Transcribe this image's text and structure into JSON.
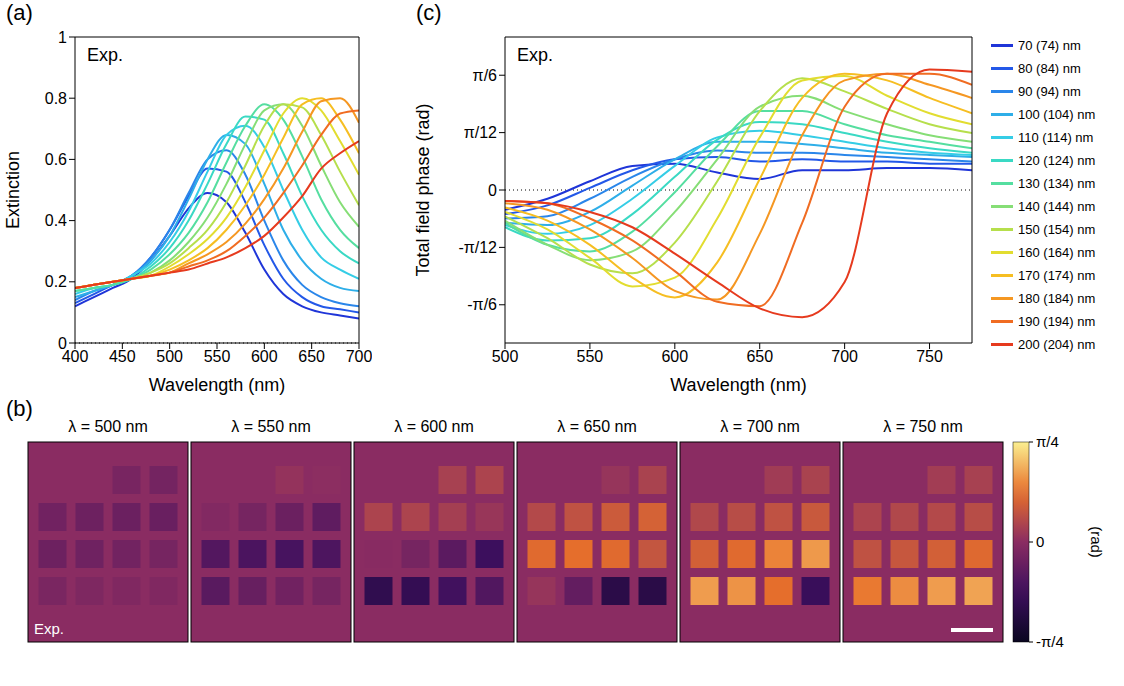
{
  "chart_data": [
    {
      "type": "line",
      "panel_label": "(a)",
      "annotations": [
        "Exp."
      ],
      "x_label": "Wavelength (nm)",
      "y_label": "Extinction",
      "x": [
        400,
        420,
        440,
        460,
        480,
        500,
        520,
        540,
        560,
        580,
        600,
        620,
        640,
        660,
        680,
        700
      ],
      "xlim": [
        400,
        700
      ],
      "xticks": [
        400,
        450,
        500,
        550,
        600,
        650,
        700
      ],
      "ylim": [
        0,
        1
      ],
      "yticks": [
        0,
        0.2,
        0.4,
        0.6,
        0.8,
        1
      ],
      "series": [
        {
          "color": "#1f35d8",
          "values": [
            0.12,
            0.15,
            0.18,
            0.21,
            0.27,
            0.35,
            0.44,
            0.49,
            0.46,
            0.36,
            0.24,
            0.16,
            0.12,
            0.1,
            0.09,
            0.08
          ]
        },
        {
          "color": "#2358e8",
          "values": [
            0.13,
            0.16,
            0.19,
            0.22,
            0.28,
            0.37,
            0.48,
            0.57,
            0.56,
            0.46,
            0.32,
            0.21,
            0.15,
            0.12,
            0.11,
            0.1
          ]
        },
        {
          "color": "#2a86ea",
          "values": [
            0.14,
            0.17,
            0.19,
            0.22,
            0.28,
            0.37,
            0.49,
            0.6,
            0.63,
            0.55,
            0.4,
            0.27,
            0.19,
            0.15,
            0.13,
            0.12
          ]
        },
        {
          "color": "#2eaee8",
          "values": [
            0.15,
            0.17,
            0.19,
            0.22,
            0.27,
            0.35,
            0.47,
            0.6,
            0.68,
            0.65,
            0.52,
            0.37,
            0.27,
            0.21,
            0.18,
            0.17
          ]
        },
        {
          "color": "#35cde6",
          "values": [
            0.16,
            0.18,
            0.19,
            0.22,
            0.26,
            0.33,
            0.43,
            0.56,
            0.68,
            0.71,
            0.64,
            0.5,
            0.37,
            0.28,
            0.24,
            0.21
          ]
        },
        {
          "color": "#3ad9c4",
          "values": [
            0.17,
            0.18,
            0.19,
            0.21,
            0.25,
            0.31,
            0.4,
            0.52,
            0.65,
            0.74,
            0.73,
            0.62,
            0.48,
            0.37,
            0.3,
            0.26
          ]
        },
        {
          "color": "#55dea0",
          "values": [
            0.17,
            0.18,
            0.19,
            0.21,
            0.24,
            0.29,
            0.36,
            0.46,
            0.59,
            0.71,
            0.78,
            0.73,
            0.61,
            0.47,
            0.37,
            0.31
          ]
        },
        {
          "color": "#86de76",
          "values": [
            0.18,
            0.19,
            0.2,
            0.21,
            0.23,
            0.27,
            0.33,
            0.41,
            0.52,
            0.65,
            0.76,
            0.78,
            0.71,
            0.58,
            0.46,
            0.38
          ]
        },
        {
          "color": "#b6df4c",
          "values": [
            0.18,
            0.19,
            0.2,
            0.21,
            0.23,
            0.26,
            0.31,
            0.37,
            0.46,
            0.58,
            0.71,
            0.78,
            0.77,
            0.68,
            0.56,
            0.45
          ]
        },
        {
          "color": "#e2dd30",
          "values": [
            0.18,
            0.19,
            0.2,
            0.21,
            0.22,
            0.25,
            0.29,
            0.34,
            0.41,
            0.51,
            0.63,
            0.75,
            0.8,
            0.76,
            0.66,
            0.55
          ]
        },
        {
          "color": "#f6be22",
          "values": [
            0.18,
            0.19,
            0.2,
            0.21,
            0.22,
            0.24,
            0.27,
            0.31,
            0.37,
            0.45,
            0.55,
            0.67,
            0.78,
            0.8,
            0.73,
            0.62
          ]
        },
        {
          "color": "#f59722",
          "values": [
            0.18,
            0.19,
            0.2,
            0.21,
            0.22,
            0.23,
            0.26,
            0.29,
            0.33,
            0.39,
            0.47,
            0.57,
            0.69,
            0.79,
            0.8,
            0.72
          ]
        },
        {
          "color": "#f06c22",
          "values": [
            0.18,
            0.19,
            0.2,
            0.21,
            0.22,
            0.23,
            0.25,
            0.27,
            0.3,
            0.35,
            0.41,
            0.49,
            0.58,
            0.68,
            0.75,
            0.76
          ]
        },
        {
          "color": "#e63a1e",
          "values": [
            0.18,
            0.19,
            0.2,
            0.21,
            0.22,
            0.23,
            0.24,
            0.26,
            0.28,
            0.31,
            0.35,
            0.41,
            0.48,
            0.57,
            0.62,
            0.66
          ]
        }
      ]
    },
    {
      "type": "heatmap",
      "panel_label": "(b)",
      "annotations": [
        "Exp."
      ],
      "maps": [
        {
          "title": "λ = 500 nm",
          "cells": [
            [
              null,
              null,
              -0.09,
              -0.11
            ],
            [
              -0.13,
              -0.15,
              -0.16,
              -0.17
            ],
            [
              -0.15,
              -0.14,
              -0.12,
              -0.1
            ],
            [
              -0.08,
              -0.06,
              -0.05,
              -0.05
            ]
          ]
        },
        {
          "title": "λ = 550 nm",
          "cells": [
            [
              null,
              null,
              0.04,
              0.01
            ],
            [
              -0.04,
              -0.1,
              -0.16,
              -0.22
            ],
            [
              -0.28,
              -0.32,
              -0.34,
              -0.31
            ],
            [
              -0.25,
              -0.18,
              -0.13,
              -0.1
            ]
          ]
        },
        {
          "title": "λ = 600 nm",
          "cells": [
            [
              null,
              null,
              0.12,
              0.14
            ],
            [
              0.14,
              0.14,
              0.11,
              0.06
            ],
            [
              -0.01,
              -0.1,
              -0.24,
              -0.4
            ],
            [
              -0.49,
              -0.46,
              -0.37,
              -0.29
            ]
          ]
        },
        {
          "title": "λ = 650 nm",
          "cells": [
            [
              null,
              null,
              0.05,
              0.13
            ],
            [
              0.17,
              0.22,
              0.27,
              0.31
            ],
            [
              0.36,
              0.38,
              0.36,
              0.24
            ],
            [
              0.05,
              -0.2,
              -0.53,
              -0.54
            ]
          ]
        },
        {
          "title": "λ = 700 nm",
          "cells": [
            [
              null,
              null,
              0.09,
              0.13
            ],
            [
              0.16,
              0.19,
              0.22,
              0.26
            ],
            [
              0.3,
              0.36,
              0.45,
              0.52
            ],
            [
              0.53,
              0.5,
              0.38,
              -0.42
            ]
          ]
        },
        {
          "title": "λ = 750 nm",
          "cells": [
            [
              null,
              null,
              0.1,
              0.12
            ],
            [
              0.14,
              0.16,
              0.17,
              0.19
            ],
            [
              0.22,
              0.25,
              0.3,
              0.35
            ],
            [
              0.42,
              0.48,
              0.53,
              0.55
            ]
          ]
        }
      ],
      "colorbar": {
        "label": "(rad)",
        "range": [
          -0.7854,
          0.7854
        ],
        "ticks": [
          {
            "value": 0.7854,
            "label": "π/4"
          },
          0,
          {
            "value": -0.7854,
            "label": "-π/4"
          }
        ]
      }
    },
    {
      "type": "line",
      "panel_label": "(c)",
      "annotations": [
        "Exp."
      ],
      "x_label": "Wavelength (nm)",
      "y_label": "Total field phase (rad)",
      "legend": "right",
      "x": [
        500,
        525,
        550,
        575,
        600,
        625,
        650,
        675,
        700,
        725,
        750,
        775
      ],
      "xlim": [
        500,
        775
      ],
      "xticks": [
        500,
        550,
        600,
        650,
        700,
        750
      ],
      "ylim": [
        -0.698,
        0.698
      ],
      "yticks": [
        {
          "value": -0.5236,
          "label": "-π/6"
        },
        {
          "value": -0.2618,
          "label": "-π/12"
        },
        0,
        {
          "value": 0.2618,
          "label": "π/12"
        },
        {
          "value": 0.5236,
          "label": "π/6"
        }
      ],
      "series": [
        {
          "name": "70 (74) nm",
          "color": "#1f35d8",
          "values": [
            -0.09,
            -0.04,
            0.04,
            0.11,
            0.12,
            0.08,
            0.05,
            0.09,
            0.09,
            0.1,
            0.1,
            0.09
          ]
        },
        {
          "name": "80 (84) nm",
          "color": "#2358e8",
          "values": [
            -0.11,
            -0.07,
            0.01,
            0.09,
            0.14,
            0.15,
            0.13,
            0.14,
            0.13,
            0.13,
            0.12,
            0.12
          ]
        },
        {
          "name": "90 (94) nm",
          "color": "#2a86ea",
          "values": [
            -0.13,
            -0.12,
            -0.04,
            0.06,
            0.14,
            0.18,
            0.17,
            0.17,
            0.16,
            0.15,
            0.14,
            0.13
          ]
        },
        {
          "name": "100 (104) nm",
          "color": "#2eaee8",
          "values": [
            -0.15,
            -0.16,
            -0.1,
            0.02,
            0.14,
            0.22,
            0.22,
            0.21,
            0.19,
            0.17,
            0.16,
            0.15
          ]
        },
        {
          "name": "110 (114) nm",
          "color": "#35cde6",
          "values": [
            -0.16,
            -0.2,
            -0.16,
            -0.04,
            0.11,
            0.24,
            0.27,
            0.25,
            0.22,
            0.19,
            0.17,
            0.16
          ]
        },
        {
          "name": "120 (124) nm",
          "color": "#3ad9c4",
          "values": [
            -0.17,
            -0.23,
            -0.22,
            -0.11,
            0.06,
            0.23,
            0.31,
            0.3,
            0.26,
            0.22,
            0.19,
            0.17
          ]
        },
        {
          "name": "130 (134) nm",
          "color": "#55dea0",
          "values": [
            -0.15,
            -0.25,
            -0.28,
            -0.19,
            -0.01,
            0.2,
            0.36,
            0.36,
            0.3,
            0.25,
            0.22,
            0.19
          ]
        },
        {
          "name": "140 (144) nm",
          "color": "#86de76",
          "values": [
            -0.14,
            -0.25,
            -0.32,
            -0.28,
            -0.1,
            0.14,
            0.38,
            0.43,
            0.36,
            0.3,
            0.25,
            0.22
          ]
        },
        {
          "name": "150 (154) nm",
          "color": "#b6df4c",
          "values": [
            -0.12,
            -0.22,
            -0.34,
            -0.38,
            -0.24,
            0.04,
            0.36,
            0.51,
            0.45,
            0.37,
            0.3,
            0.26
          ]
        },
        {
          "name": "160 (164) nm",
          "color": "#e2dd30",
          "values": [
            -0.1,
            -0.18,
            -0.31,
            -0.44,
            -0.4,
            -0.13,
            0.24,
            0.5,
            0.52,
            0.43,
            0.35,
            0.3
          ]
        },
        {
          "name": "170 (174) nm",
          "color": "#f6be22",
          "values": [
            -0.08,
            -0.14,
            -0.25,
            -0.4,
            -0.49,
            -0.33,
            0.05,
            0.42,
            0.53,
            0.5,
            0.42,
            0.35
          ]
        },
        {
          "name": "180 (184) nm",
          "color": "#f59722",
          "values": [
            -0.06,
            -0.09,
            -0.18,
            -0.31,
            -0.46,
            -0.5,
            -0.2,
            0.25,
            0.5,
            0.53,
            0.48,
            0.42
          ]
        },
        {
          "name": "190 (194) nm",
          "color": "#f06c22",
          "values": [
            -0.05,
            -0.06,
            -0.13,
            -0.23,
            -0.37,
            -0.51,
            -0.53,
            -0.15,
            0.38,
            0.53,
            0.53,
            0.48
          ]
        },
        {
          "name": "200 (204) nm",
          "color": "#e63a1e",
          "values": [
            -0.05,
            -0.06,
            -0.1,
            -0.17,
            -0.29,
            -0.42,
            -0.54,
            -0.58,
            -0.42,
            0.35,
            0.55,
            0.54
          ]
        }
      ]
    }
  ]
}
